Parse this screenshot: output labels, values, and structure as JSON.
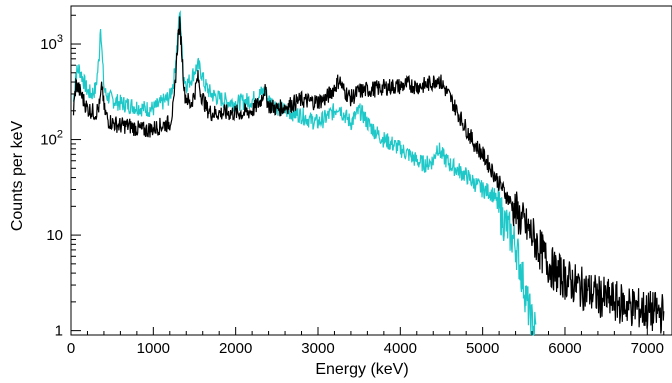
{
  "chart_data": {
    "type": "line",
    "title": "",
    "xlabel": "Energy (keV)",
    "ylabel": "Counts per keV",
    "xlim": [
      0,
      7300
    ],
    "ylim": [
      0.9,
      2500
    ],
    "yscale": "log",
    "grid": false,
    "x_ticks": [
      {
        "value": 0,
        "label": "0"
      },
      {
        "value": 1000,
        "label": "1000"
      },
      {
        "value": 2000,
        "label": "2000"
      },
      {
        "value": 3000,
        "label": "3000"
      },
      {
        "value": 4000,
        "label": "4000"
      },
      {
        "value": 5000,
        "label": "5000"
      },
      {
        "value": 6000,
        "label": "6000"
      },
      {
        "value": 7000,
        "label": "7000"
      }
    ],
    "y_ticks": [
      {
        "value": 1,
        "base": "1",
        "exp": ""
      },
      {
        "value": 10,
        "base": "10",
        "exp": ""
      },
      {
        "value": 100,
        "base": "10",
        "exp": "2"
      },
      {
        "value": 1000,
        "base": "10",
        "exp": "3"
      }
    ],
    "series": [
      {
        "color": "#1ec8c8",
        "x": [
          30,
          60,
          100,
          150,
          200,
          250,
          300,
          340,
          360,
          380,
          400,
          420,
          450,
          500,
          600,
          700,
          800,
          900,
          1000,
          1100,
          1200,
          1250,
          1300,
          1320,
          1340,
          1360,
          1400,
          1450,
          1500,
          1540,
          1580,
          1620,
          1700,
          1800,
          1900,
          2000,
          2100,
          2200,
          2300,
          2350,
          2400,
          2500,
          2600,
          2700,
          2800,
          2900,
          3000,
          3100,
          3200,
          3250,
          3300,
          3400,
          3500,
          3550,
          3600,
          3700,
          3800,
          3900,
          4000,
          4100,
          4200,
          4300,
          4400,
          4450,
          4500,
          4600,
          4700,
          4800,
          4900,
          5000,
          5100,
          5150,
          5200,
          5300,
          5400,
          5450,
          5500,
          5550,
          5600,
          5650
        ],
        "y": [
          250,
          500,
          550,
          420,
          320,
          300,
          340,
          700,
          1700,
          700,
          360,
          300,
          280,
          260,
          240,
          230,
          220,
          210,
          210,
          240,
          280,
          420,
          1300,
          2200,
          1300,
          500,
          380,
          420,
          520,
          600,
          520,
          380,
          300,
          270,
          250,
          240,
          250,
          260,
          300,
          320,
          260,
          220,
          200,
          190,
          180,
          160,
          150,
          170,
          200,
          230,
          190,
          150,
          200,
          180,
          150,
          120,
          100,
          90,
          80,
          70,
          60,
          55,
          60,
          85,
          70,
          55,
          48,
          42,
          35,
          30,
          28,
          25,
          18,
          12,
          8,
          5,
          3,
          1.8,
          1.2,
          1
        ]
      },
      {
        "color": "#000000",
        "x": [
          30,
          60,
          100,
          150,
          200,
          250,
          300,
          350,
          380,
          400,
          450,
          500,
          600,
          700,
          800,
          900,
          1000,
          1100,
          1200,
          1250,
          1300,
          1320,
          1340,
          1380,
          1450,
          1500,
          1540,
          1580,
          1650,
          1700,
          1800,
          1900,
          2000,
          2100,
          2200,
          2300,
          2350,
          2400,
          2500,
          2600,
          2700,
          2800,
          2900,
          3000,
          3100,
          3200,
          3260,
          3300,
          3400,
          3500,
          3600,
          3700,
          3800,
          3900,
          4000,
          4100,
          4200,
          4300,
          4400,
          4450,
          4500,
          4600,
          4700,
          4800,
          4900,
          5000,
          5100,
          5200,
          5300,
          5400,
          5500,
          5600,
          5700,
          5800,
          5900,
          6000,
          6200,
          6400,
          6600,
          6800,
          7000,
          7200
        ],
        "y": [
          200,
          380,
          330,
          260,
          210,
          200,
          190,
          230,
          380,
          210,
          160,
          150,
          140,
          140,
          130,
          125,
          130,
          140,
          150,
          230,
          1200,
          1600,
          1000,
          300,
          230,
          300,
          450,
          300,
          210,
          190,
          190,
          190,
          190,
          190,
          200,
          250,
          340,
          230,
          210,
          220,
          240,
          260,
          250,
          250,
          270,
          350,
          430,
          340,
          270,
          320,
          330,
          340,
          350,
          360,
          360,
          380,
          360,
          370,
          400,
          440,
          390,
          280,
          190,
          130,
          90,
          70,
          50,
          35,
          25,
          18,
          13,
          10,
          7,
          5,
          4,
          3.5,
          2.8,
          2.3,
          2,
          1.8,
          1.6,
          1.5
        ]
      }
    ]
  }
}
